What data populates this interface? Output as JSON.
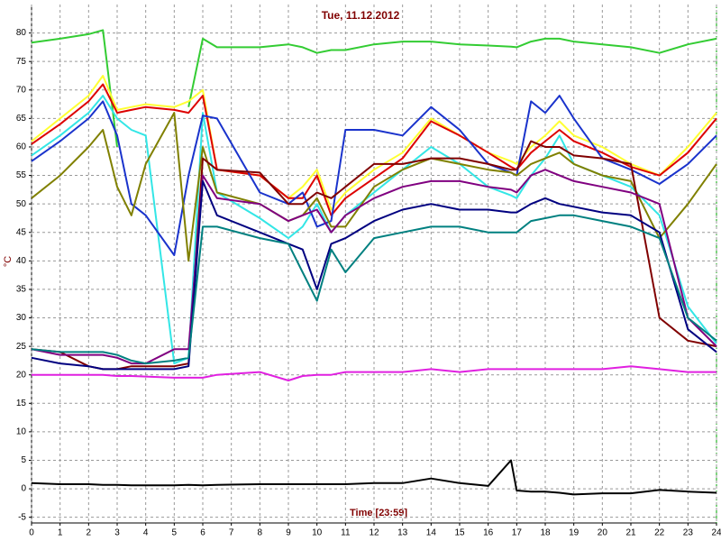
{
  "chart_data": {
    "type": "line",
    "title": "Tue, 11.12.2012",
    "xlabel": "Time [23:59]",
    "ylabel": "°C",
    "x": [
      0,
      1,
      2,
      2.5,
      3,
      3.5,
      4,
      5,
      5.5,
      6,
      6.5,
      8,
      9,
      9.5,
      10,
      10.5,
      11,
      12,
      13,
      14,
      15,
      16,
      16.8,
      17,
      17.5,
      18,
      18.5,
      19,
      20,
      21,
      22,
      23,
      24
    ],
    "xlim": [
      0,
      24
    ],
    "xticks": [
      0,
      1,
      2,
      3,
      4,
      5,
      6,
      7,
      8,
      9,
      10,
      11,
      12,
      13,
      14,
      15,
      16,
      17,
      18,
      19,
      20,
      21,
      22,
      23,
      24
    ],
    "ylim": [
      -6,
      85
    ],
    "yticks": [
      -5,
      0,
      5,
      10,
      15,
      20,
      25,
      30,
      35,
      40,
      45,
      50,
      55,
      60,
      65,
      70,
      75,
      80
    ],
    "grid": true,
    "series": [
      {
        "color": "#33cc33",
        "values": [
          78.3,
          79,
          79.8,
          80.5,
          60,
          null,
          null,
          null,
          67,
          79,
          77.5,
          77.5,
          78,
          77.5,
          76.5,
          77,
          77,
          78,
          78.5,
          78.5,
          78,
          77.8,
          77.6,
          77.5,
          78.5,
          79,
          79,
          78.5,
          78,
          77.5,
          76.5,
          78,
          79
        ]
      },
      {
        "color": "#ffff33",
        "values": [
          61,
          65,
          69,
          72.5,
          66.5,
          67,
          67.5,
          67,
          68,
          70,
          56,
          55,
          51,
          53,
          56,
          49,
          52,
          56,
          59,
          65,
          62,
          59,
          57.5,
          57,
          60,
          62,
          64.5,
          62,
          60,
          57,
          55,
          60,
          66
        ]
      },
      {
        "color": "#dd0000",
        "values": [
          60.5,
          64,
          68,
          71,
          66,
          66.5,
          67,
          66.5,
          66,
          69,
          56,
          55,
          51,
          51,
          55,
          48,
          51,
          54.5,
          58,
          64.5,
          62,
          59,
          56.5,
          56,
          59,
          61,
          63,
          61,
          59,
          56.5,
          55,
          59,
          65
        ]
      },
      {
        "color": "#33e6e6",
        "values": [
          58.5,
          62,
          66,
          69,
          65,
          63,
          62,
          22,
          23,
          66,
          52,
          47.5,
          44,
          46,
          50,
          45,
          48,
          52,
          56,
          60,
          57,
          53,
          51.5,
          51,
          55,
          58,
          62,
          57,
          55,
          53,
          48,
          32,
          25.5
        ]
      },
      {
        "color": "#1a33cc",
        "values": [
          57.5,
          61,
          65,
          68,
          62,
          50,
          48,
          41,
          55,
          65.5,
          65,
          52,
          50,
          52,
          46,
          47,
          63,
          63,
          62,
          67,
          63,
          57,
          55.5,
          55,
          68,
          66,
          69,
          65,
          58,
          56,
          53.5,
          57,
          62
        ]
      },
      {
        "color": "#808000",
        "values": [
          51,
          55,
          60,
          63,
          53,
          48,
          57,
          66,
          40,
          60,
          52,
          50,
          47,
          48,
          51,
          46,
          46,
          53,
          56,
          58,
          57,
          56,
          55.5,
          55,
          57,
          58,
          59,
          57,
          55,
          54,
          44,
          50,
          57
        ]
      },
      {
        "color": "#800000",
        "values": [
          24.5,
          24,
          21.5,
          21,
          21,
          21.5,
          21.5,
          21.5,
          22,
          58,
          56,
          55.5,
          50,
          50,
          52,
          51,
          53,
          57,
          57,
          58,
          58,
          57,
          56,
          56,
          61,
          60,
          60,
          58.5,
          58,
          57,
          30,
          26,
          25
        ]
      },
      {
        "color": "#800080",
        "values": [
          24.5,
          23.5,
          23.5,
          23.5,
          23,
          22,
          22,
          24.5,
          24.5,
          55,
          51,
          50,
          47,
          48,
          49,
          45,
          48,
          51,
          53,
          54,
          54,
          53,
          52.5,
          52,
          55,
          56,
          55,
          54,
          53,
          52,
          50,
          30,
          25
        ]
      },
      {
        "color": "#000080",
        "values": [
          23,
          22,
          21.5,
          21,
          21,
          21,
          21,
          21,
          21.5,
          54,
          48,
          45,
          43,
          42,
          35,
          43,
          44,
          47,
          49,
          50,
          49,
          49,
          48.5,
          48.5,
          50,
          51,
          50,
          49.5,
          48.5,
          48,
          45,
          28,
          24
        ]
      },
      {
        "color": "#008080",
        "values": [
          24.5,
          24,
          24,
          24,
          23.5,
          22.5,
          22,
          22.5,
          23,
          46,
          46,
          44,
          43,
          38,
          33,
          42,
          38,
          44,
          45,
          46,
          46,
          45,
          45,
          45,
          47,
          47.5,
          48,
          48,
          47,
          46,
          44,
          30,
          26
        ]
      },
      {
        "color": "#e020e0",
        "values": [
          20,
          20,
          20,
          20,
          19.8,
          19.8,
          19.7,
          19.5,
          19.5,
          19.5,
          20,
          20.5,
          19,
          19.8,
          20,
          20,
          20.5,
          20.5,
          20.5,
          21,
          20.5,
          21,
          21,
          21,
          21,
          21,
          21,
          21,
          21,
          21.5,
          21,
          20.5,
          20.5
        ]
      },
      {
        "color": "#000000",
        "values": [
          1,
          0.8,
          0.8,
          0.7,
          0.7,
          0.6,
          0.6,
          0.6,
          0.7,
          0.6,
          0.7,
          0.8,
          0.8,
          0.8,
          0.8,
          0.8,
          0.8,
          1,
          1,
          1.8,
          1,
          0.5,
          5,
          -0.3,
          -0.5,
          -0.5,
          -0.7,
          -1,
          -0.8,
          -0.8,
          -0.2,
          -0.5,
          -0.7
        ]
      }
    ]
  }
}
